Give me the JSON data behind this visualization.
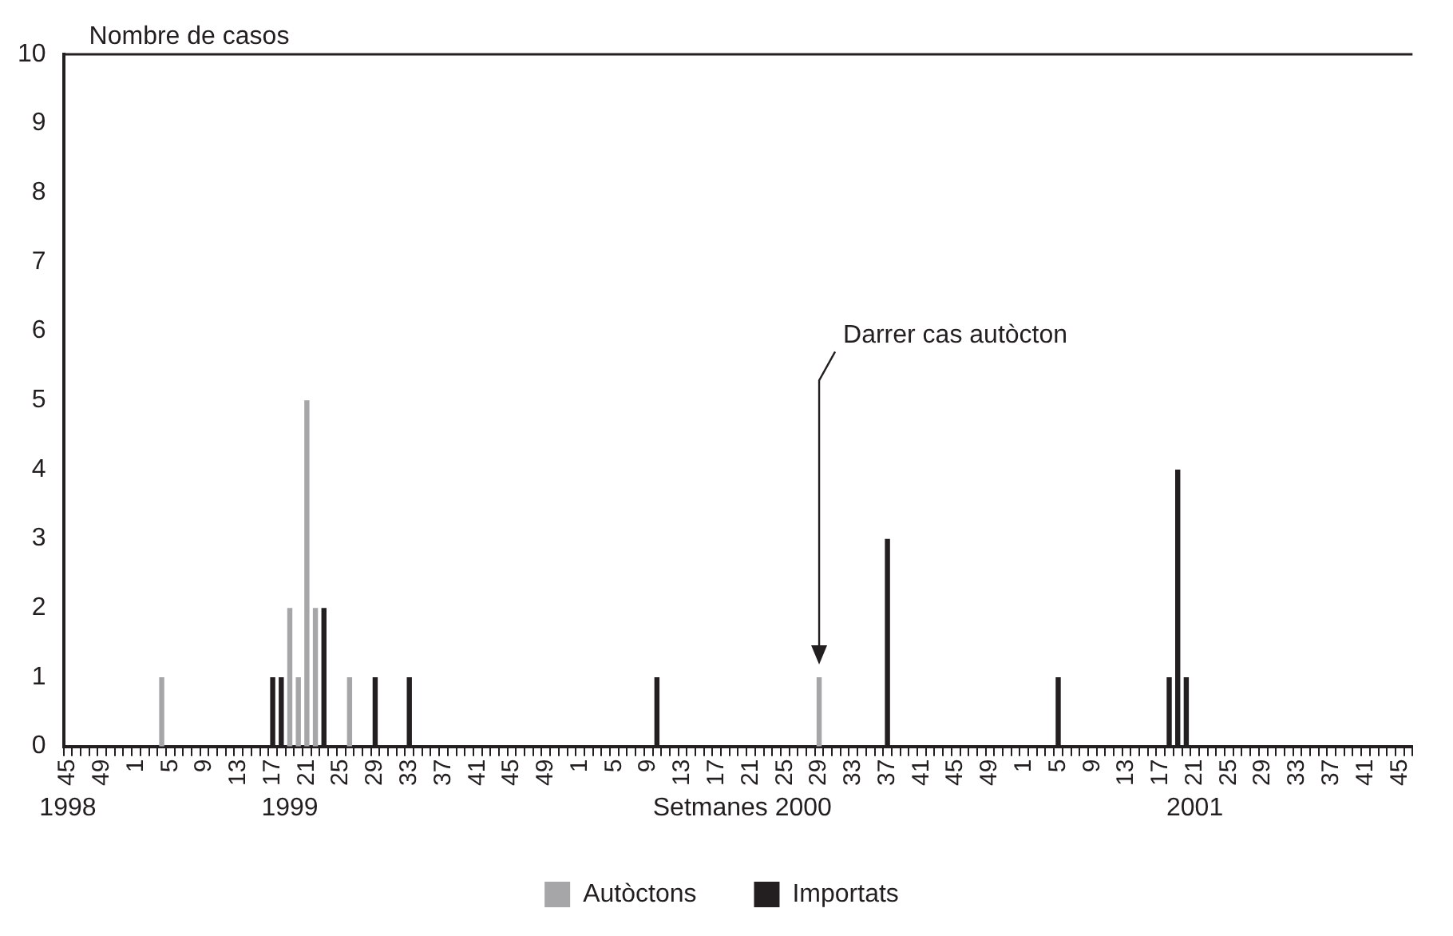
{
  "chart_data": {
    "type": "bar",
    "ylabel": "Nombre de casos",
    "categories": [
      "45",
      null,
      null,
      null,
      "49",
      null,
      null,
      null,
      "1",
      null,
      null,
      null,
      "5",
      null,
      null,
      null,
      "9",
      null,
      null,
      null,
      "13",
      null,
      null,
      null,
      "17",
      null,
      null,
      null,
      "21",
      null,
      null,
      null,
      "25",
      null,
      null,
      null,
      "29",
      null,
      null,
      null,
      "33",
      null,
      null,
      null,
      "37",
      null,
      null,
      null,
      "41",
      null,
      null,
      null,
      "45",
      null,
      null,
      null,
      "49",
      null,
      null,
      null,
      "1",
      null,
      null,
      null,
      "5",
      null,
      null,
      null,
      "9",
      null,
      null,
      null,
      "13",
      null,
      null,
      null,
      "17",
      null,
      null,
      null,
      "21",
      null,
      null,
      null,
      "25",
      null,
      null,
      null,
      "29",
      null,
      null,
      null,
      "33",
      null,
      null,
      null,
      "37",
      null,
      null,
      null,
      "41",
      null,
      null,
      null,
      "45",
      null,
      null,
      null,
      "49",
      null,
      null,
      null,
      "1",
      null,
      null,
      null,
      "5",
      null,
      null,
      null,
      "9",
      null,
      null,
      null,
      "13",
      null,
      null,
      null,
      "17",
      null,
      null,
      null,
      "21",
      null,
      null,
      null,
      "25",
      null,
      null,
      null,
      "29",
      null,
      null,
      null,
      "33",
      null,
      null,
      null,
      "37",
      null,
      null,
      null,
      "41",
      null,
      null,
      null,
      "45",
      null
    ],
    "series": [
      {
        "name": "Autòctons",
        "color": "#a6a6a8",
        "values": [
          0,
          0,
          0,
          0,
          0,
          0,
          0,
          0,
          0,
          0,
          0,
          1,
          0,
          0,
          0,
          0,
          0,
          0,
          0,
          0,
          0,
          0,
          0,
          0,
          0,
          0,
          2,
          1,
          5,
          2,
          0,
          0,
          0,
          1,
          0,
          0,
          0,
          0,
          0,
          0,
          0,
          0,
          0,
          0,
          0,
          0,
          0,
          0,
          0,
          0,
          0,
          0,
          0,
          0,
          0,
          0,
          0,
          0,
          0,
          0,
          0,
          0,
          0,
          0,
          0,
          0,
          0,
          0,
          0,
          0,
          0,
          0,
          0,
          0,
          0,
          0,
          0,
          0,
          0,
          0,
          0,
          0,
          0,
          0,
          0,
          0,
          0,
          0,
          1,
          0,
          0,
          0,
          0,
          0,
          0,
          0,
          0,
          0,
          0,
          0,
          0,
          0,
          0,
          0,
          0,
          0,
          0,
          0,
          0,
          0,
          0,
          0,
          0,
          0,
          0,
          0,
          0,
          0,
          0,
          0,
          0,
          0,
          0,
          0,
          0,
          0,
          0,
          0,
          0,
          0,
          0,
          0,
          0,
          0,
          0,
          0,
          0,
          0,
          0,
          0,
          0,
          0,
          0,
          0,
          0,
          0,
          0,
          0,
          0,
          0,
          0,
          0,
          0,
          0,
          0,
          0,
          0,
          0
        ]
      },
      {
        "name": "Importats",
        "color": "#231f20",
        "values": [
          0,
          0,
          0,
          0,
          0,
          0,
          0,
          0,
          0,
          0,
          0,
          0,
          0,
          0,
          0,
          0,
          0,
          0,
          0,
          0,
          0,
          0,
          0,
          0,
          1,
          1,
          0,
          0,
          0,
          0,
          2,
          0,
          0,
          0,
          0,
          0,
          1,
          0,
          0,
          0,
          1,
          0,
          0,
          0,
          0,
          0,
          0,
          0,
          0,
          0,
          0,
          0,
          0,
          0,
          0,
          0,
          0,
          0,
          0,
          0,
          0,
          0,
          0,
          0,
          0,
          0,
          0,
          0,
          0,
          1,
          0,
          0,
          0,
          0,
          0,
          0,
          0,
          0,
          0,
          0,
          0,
          0,
          0,
          0,
          0,
          0,
          0,
          0,
          0,
          0,
          0,
          0,
          0,
          0,
          0,
          0,
          3,
          0,
          0,
          0,
          0,
          0,
          0,
          0,
          0,
          0,
          0,
          0,
          0,
          0,
          0,
          0,
          0,
          0,
          0,
          0,
          1,
          0,
          0,
          0,
          0,
          0,
          0,
          0,
          0,
          0,
          0,
          0,
          0,
          1,
          4,
          1,
          0,
          0,
          0,
          0,
          0,
          0,
          0,
          0,
          0,
          0,
          0,
          0,
          0,
          0,
          0,
          0,
          0,
          0,
          0,
          0,
          0,
          0,
          0,
          0,
          0,
          0
        ]
      }
    ],
    "ylim": [
      0,
      10
    ],
    "yticks": [
      0,
      1,
      2,
      3,
      4,
      5,
      6,
      7,
      8,
      9,
      10
    ],
    "legend": "bottom",
    "annotations": [
      "1998",
      "1999",
      "Setmanes 2000",
      "2001",
      "Darrer cas autòcton"
    ]
  }
}
